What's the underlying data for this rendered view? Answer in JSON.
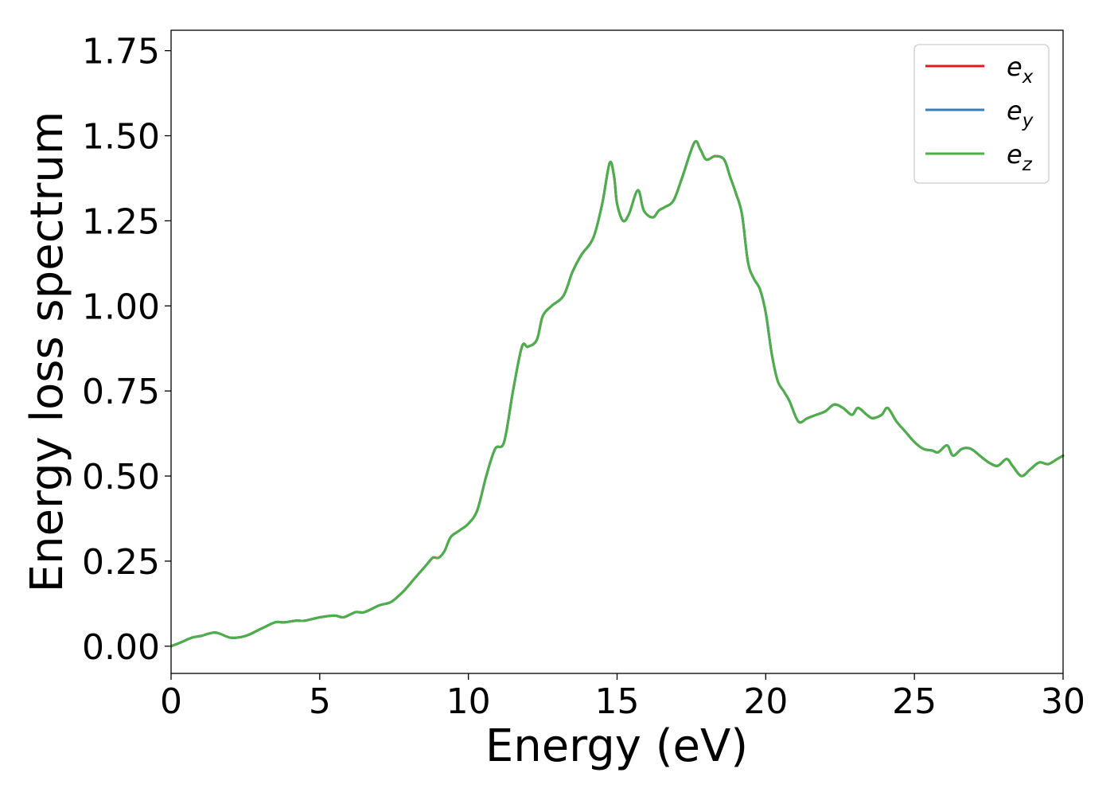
{
  "chart_data": {
    "type": "line",
    "xlabel": "Energy (eV)",
    "ylabel": "Energy loss spectrum",
    "xlim": [
      0,
      30
    ],
    "ylim": [
      -0.08,
      1.81
    ],
    "xticks": [
      0,
      5,
      10,
      15,
      20,
      25,
      30
    ],
    "xtick_labels": [
      "0",
      "5",
      "10",
      "15",
      "20",
      "25",
      "30"
    ],
    "yticks": [
      0.0,
      0.25,
      0.5,
      0.75,
      1.0,
      1.25,
      1.5,
      1.75
    ],
    "ytick_labels": [
      "0.00",
      "0.25",
      "0.50",
      "0.75",
      "1.00",
      "1.25",
      "1.50",
      "1.75"
    ],
    "grid": false,
    "legend_position": "top-right",
    "series": [
      {
        "name": "e_x",
        "base": "e",
        "sub": "x",
        "color": "#e41a1c",
        "x": [
          0,
          0.3,
          0.7,
          1.0,
          1.5,
          2.0,
          2.5,
          3.0,
          3.5,
          3.8,
          4.2,
          4.5,
          5.0,
          5.5,
          5.8,
          6.2,
          6.5,
          7.0,
          7.4,
          7.8,
          8.2,
          8.6,
          8.8,
          9.0,
          9.2,
          9.4,
          9.7,
          10.0,
          10.3,
          10.6,
          10.9,
          11.2,
          11.5,
          11.8,
          12.0,
          12.3,
          12.5,
          12.8,
          13.2,
          13.5,
          13.8,
          14.2,
          14.5,
          14.75,
          14.9,
          15.0,
          15.2,
          15.4,
          15.7,
          15.9,
          16.2,
          16.4,
          16.6,
          16.9,
          17.2,
          17.6,
          17.8,
          18.0,
          18.3,
          18.6,
          18.8,
          19.0,
          19.2,
          19.4,
          19.6,
          19.8,
          20.0,
          20.2,
          20.4,
          20.6,
          20.8,
          21.1,
          21.4,
          21.7,
          22.0,
          22.3,
          22.6,
          22.9,
          23.1,
          23.4,
          23.6,
          23.9,
          24.1,
          24.4,
          24.7,
          25.0,
          25.3,
          25.6,
          25.8,
          26.1,
          26.3,
          26.6,
          26.9,
          27.2,
          27.5,
          27.8,
          28.1,
          28.3,
          28.6,
          28.9,
          29.2,
          29.5,
          29.8,
          30.0
        ],
        "y": [
          0,
          0.01,
          0.025,
          0.03,
          0.04,
          0.025,
          0.03,
          0.05,
          0.07,
          0.07,
          0.075,
          0.075,
          0.085,
          0.09,
          0.085,
          0.1,
          0.1,
          0.12,
          0.13,
          0.16,
          0.2,
          0.24,
          0.26,
          0.26,
          0.28,
          0.32,
          0.34,
          0.36,
          0.4,
          0.5,
          0.58,
          0.6,
          0.75,
          0.88,
          0.88,
          0.9,
          0.97,
          1.0,
          1.03,
          1.1,
          1.15,
          1.2,
          1.3,
          1.42,
          1.38,
          1.3,
          1.25,
          1.27,
          1.34,
          1.28,
          1.26,
          1.28,
          1.29,
          1.31,
          1.38,
          1.48,
          1.46,
          1.43,
          1.44,
          1.43,
          1.38,
          1.33,
          1.27,
          1.13,
          1.08,
          1.05,
          0.98,
          0.86,
          0.78,
          0.75,
          0.72,
          0.66,
          0.67,
          0.68,
          0.69,
          0.71,
          0.7,
          0.68,
          0.7,
          0.68,
          0.67,
          0.68,
          0.7,
          0.66,
          0.63,
          0.6,
          0.58,
          0.575,
          0.57,
          0.59,
          0.56,
          0.58,
          0.58,
          0.56,
          0.54,
          0.53,
          0.55,
          0.53,
          0.5,
          0.52,
          0.54,
          0.535,
          0.55,
          0.56
        ]
      },
      {
        "name": "e_y",
        "base": "e",
        "sub": "y",
        "color": "#377eb8",
        "x": [
          0,
          0.3,
          0.7,
          1.0,
          1.5,
          2.0,
          2.5,
          3.0,
          3.5,
          3.8,
          4.2,
          4.5,
          5.0,
          5.5,
          5.8,
          6.2,
          6.5,
          7.0,
          7.4,
          7.8,
          8.2,
          8.6,
          8.8,
          9.0,
          9.2,
          9.4,
          9.7,
          10.0,
          10.3,
          10.6,
          10.9,
          11.2,
          11.5,
          11.8,
          12.0,
          12.3,
          12.5,
          12.8,
          13.2,
          13.5,
          13.8,
          14.2,
          14.5,
          14.75,
          14.9,
          15.0,
          15.2,
          15.4,
          15.7,
          15.9,
          16.2,
          16.4,
          16.6,
          16.9,
          17.2,
          17.6,
          17.8,
          18.0,
          18.3,
          18.6,
          18.8,
          19.0,
          19.2,
          19.4,
          19.6,
          19.8,
          20.0,
          20.2,
          20.4,
          20.6,
          20.8,
          21.1,
          21.4,
          21.7,
          22.0,
          22.3,
          22.6,
          22.9,
          23.1,
          23.4,
          23.6,
          23.9,
          24.1,
          24.4,
          24.7,
          25.0,
          25.3,
          25.6,
          25.8,
          26.1,
          26.3,
          26.6,
          26.9,
          27.2,
          27.5,
          27.8,
          28.1,
          28.3,
          28.6,
          28.9,
          29.2,
          29.5,
          29.8,
          30.0
        ],
        "y": [
          0,
          0.01,
          0.025,
          0.03,
          0.04,
          0.025,
          0.03,
          0.05,
          0.07,
          0.07,
          0.075,
          0.075,
          0.085,
          0.09,
          0.085,
          0.1,
          0.1,
          0.12,
          0.13,
          0.16,
          0.2,
          0.24,
          0.26,
          0.26,
          0.28,
          0.32,
          0.34,
          0.36,
          0.4,
          0.5,
          0.58,
          0.6,
          0.75,
          0.88,
          0.88,
          0.9,
          0.97,
          1.0,
          1.03,
          1.1,
          1.15,
          1.2,
          1.3,
          1.42,
          1.38,
          1.3,
          1.25,
          1.27,
          1.34,
          1.28,
          1.26,
          1.28,
          1.29,
          1.31,
          1.38,
          1.48,
          1.46,
          1.43,
          1.44,
          1.43,
          1.38,
          1.33,
          1.27,
          1.13,
          1.08,
          1.05,
          0.98,
          0.86,
          0.78,
          0.75,
          0.72,
          0.66,
          0.67,
          0.68,
          0.69,
          0.71,
          0.7,
          0.68,
          0.7,
          0.68,
          0.67,
          0.68,
          0.7,
          0.66,
          0.63,
          0.6,
          0.58,
          0.575,
          0.57,
          0.59,
          0.56,
          0.58,
          0.58,
          0.56,
          0.54,
          0.53,
          0.55,
          0.53,
          0.5,
          0.52,
          0.54,
          0.535,
          0.55,
          0.56
        ]
      },
      {
        "name": "e_z",
        "base": "e",
        "sub": "z",
        "color": "#4daf4a",
        "x": [
          0,
          0.3,
          0.7,
          1.0,
          1.5,
          2.0,
          2.5,
          3.0,
          3.5,
          3.8,
          4.2,
          4.5,
          5.0,
          5.5,
          5.8,
          6.2,
          6.5,
          7.0,
          7.4,
          7.8,
          8.2,
          8.6,
          8.8,
          9.0,
          9.2,
          9.4,
          9.7,
          10.0,
          10.3,
          10.6,
          10.9,
          11.2,
          11.5,
          11.8,
          12.0,
          12.3,
          12.5,
          12.8,
          13.2,
          13.5,
          13.8,
          14.2,
          14.5,
          14.75,
          14.9,
          15.0,
          15.2,
          15.4,
          15.7,
          15.9,
          16.2,
          16.4,
          16.6,
          16.9,
          17.2,
          17.6,
          17.8,
          18.0,
          18.3,
          18.6,
          18.8,
          19.0,
          19.2,
          19.4,
          19.6,
          19.8,
          20.0,
          20.2,
          20.4,
          20.6,
          20.8,
          21.1,
          21.4,
          21.7,
          22.0,
          22.3,
          22.6,
          22.9,
          23.1,
          23.4,
          23.6,
          23.9,
          24.1,
          24.4,
          24.7,
          25.0,
          25.3,
          25.6,
          25.8,
          26.1,
          26.3,
          26.6,
          26.9,
          27.2,
          27.5,
          27.8,
          28.1,
          28.3,
          28.6,
          28.9,
          29.2,
          29.5,
          29.8,
          30.0
        ],
        "y": [
          0,
          0.01,
          0.025,
          0.03,
          0.04,
          0.025,
          0.03,
          0.05,
          0.07,
          0.07,
          0.075,
          0.075,
          0.085,
          0.09,
          0.085,
          0.1,
          0.1,
          0.12,
          0.13,
          0.16,
          0.2,
          0.24,
          0.26,
          0.26,
          0.28,
          0.32,
          0.34,
          0.36,
          0.4,
          0.5,
          0.58,
          0.6,
          0.75,
          0.88,
          0.88,
          0.9,
          0.97,
          1.0,
          1.03,
          1.1,
          1.15,
          1.2,
          1.3,
          1.42,
          1.38,
          1.3,
          1.25,
          1.27,
          1.34,
          1.28,
          1.26,
          1.28,
          1.29,
          1.31,
          1.38,
          1.48,
          1.46,
          1.43,
          1.44,
          1.43,
          1.38,
          1.33,
          1.27,
          1.13,
          1.08,
          1.05,
          0.98,
          0.86,
          0.78,
          0.75,
          0.72,
          0.66,
          0.67,
          0.68,
          0.69,
          0.71,
          0.7,
          0.68,
          0.7,
          0.68,
          0.67,
          0.68,
          0.7,
          0.66,
          0.63,
          0.6,
          0.58,
          0.575,
          0.57,
          0.59,
          0.56,
          0.58,
          0.58,
          0.56,
          0.54,
          0.53,
          0.55,
          0.53,
          0.5,
          0.52,
          0.54,
          0.535,
          0.55,
          0.56
        ]
      }
    ]
  }
}
